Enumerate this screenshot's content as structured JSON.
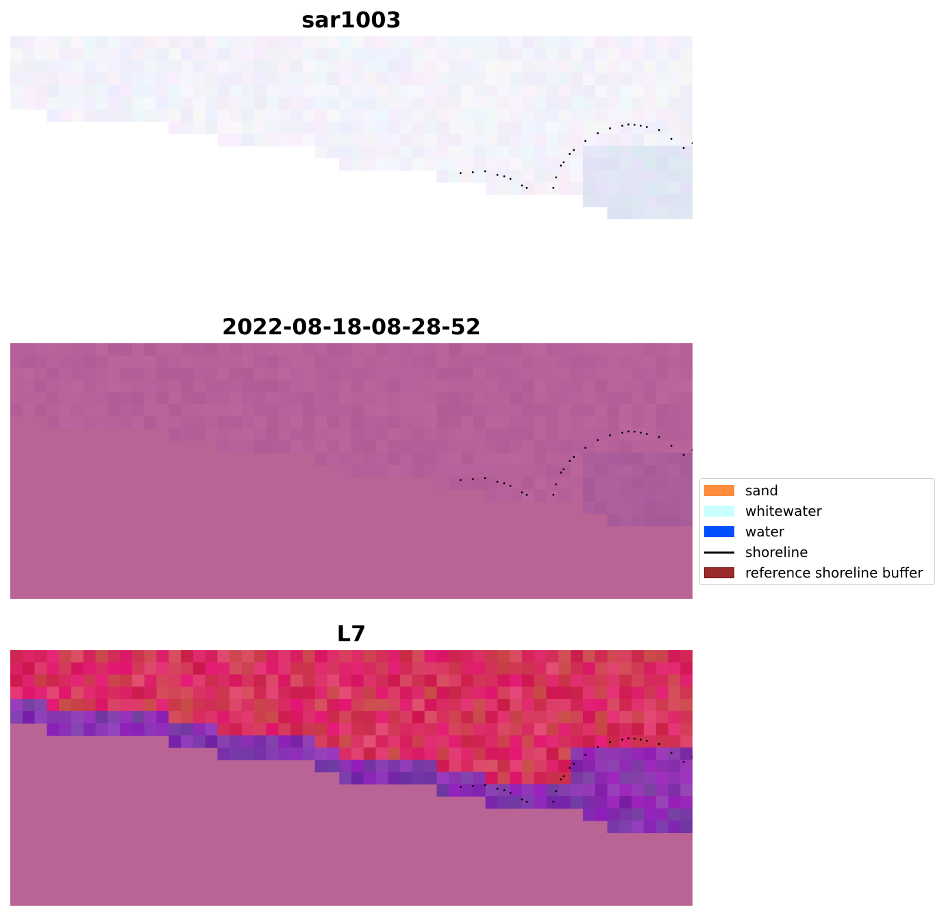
{
  "chart_data": {
    "type": "heatmap",
    "grid": false,
    "legend_position": "center-right",
    "panels": [
      {
        "title": "sar1003",
        "colormap": "pale-rgb"
      },
      {
        "title": "2022-08-18-08-28-52",
        "colormap": "mauve-index"
      },
      {
        "title": "L7",
        "colormap": "red-purple-index"
      }
    ],
    "nodata_color": "#ba6496",
    "shoreline_points": [
      [
        0.66,
        0.535
      ],
      [
        0.678,
        0.532
      ],
      [
        0.696,
        0.528
      ],
      [
        0.714,
        0.542
      ],
      [
        0.724,
        0.548
      ],
      [
        0.733,
        0.558
      ],
      [
        0.75,
        0.584
      ],
      [
        0.757,
        0.593
      ],
      [
        0.796,
        0.593
      ],
      [
        0.8,
        0.552
      ],
      [
        0.807,
        0.506
      ],
      [
        0.811,
        0.493
      ],
      [
        0.82,
        0.46
      ],
      [
        0.826,
        0.445
      ],
      [
        0.843,
        0.409
      ],
      [
        0.861,
        0.379
      ],
      [
        0.879,
        0.36
      ],
      [
        0.897,
        0.35
      ],
      [
        0.906,
        0.345
      ],
      [
        0.915,
        0.346
      ],
      [
        0.924,
        0.35
      ],
      [
        0.933,
        0.355
      ],
      [
        0.951,
        0.367
      ],
      [
        0.969,
        0.401
      ],
      [
        0.987,
        0.437
      ],
      [
        1.0,
        0.418
      ]
    ],
    "legend": [
      {
        "label": "sand",
        "kind": "patch",
        "color": "#ff8c3c"
      },
      {
        "label": "whitewater",
        "kind": "patch",
        "color": "#c8ffff"
      },
      {
        "label": "water",
        "kind": "patch",
        "color": "#0050ff"
      },
      {
        "label": "shoreline",
        "kind": "line",
        "color": "#000000"
      },
      {
        "label": "reference shoreline buffer",
        "kind": "patch",
        "color": "#9b2a2a",
        "edge": "#6e1414"
      }
    ]
  }
}
